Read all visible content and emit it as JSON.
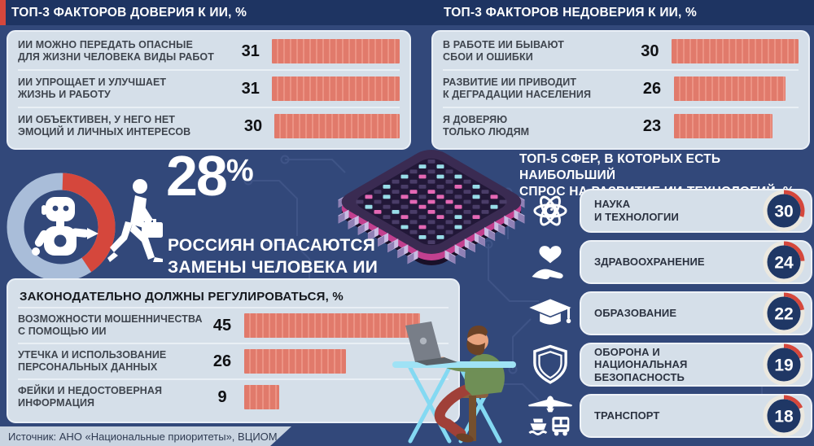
{
  "page": {
    "source_label": "Источник: АНО «Национальные приоритеты», ВЦИОМ"
  },
  "fear": {
    "value": "28",
    "suffix": "%",
    "caption": "РОССИЯН ОПАСАЮТСЯ\nЗАМЕНЫ ЧЕЛОВЕКА ИИ"
  },
  "colors": {
    "background": "#32487a",
    "title_band": "#1e3462",
    "panel": "#d5dfe9",
    "bar": "#e17a6b",
    "bar_stripe": "#ec9384",
    "accent_red": "#d5473c",
    "donut_ring": "#a9bdd9",
    "gauge_core": "#1f3765",
    "gauge_ring": "#ebe8df"
  },
  "chart_data": [
    {
      "type": "bar",
      "orientation": "horizontal",
      "title": "ТОП-3 ФАКТОРОВ ДОВЕРИЯ К ИИ, %",
      "categories": [
        "ИИ МОЖНО ПЕРЕДАТЬ ОПАСНЫЕ\nДЛЯ ЖИЗНИ ЧЕЛОВЕКА ВИДЫ РАБОТ",
        "ИИ УПРОЩАЕТ И УЛУЧШАЕТ\nЖИЗНЬ И РАБОТУ",
        "ИИ ОБЪЕКТИВЕН, У НЕГО НЕТ\nЭМОЦИЙ И ЛИЧНЫХ ИНТЕРЕСОВ"
      ],
      "values": [
        31,
        31,
        30
      ],
      "xlim": [
        0,
        31
      ],
      "bar_color": "#e17a6b"
    },
    {
      "type": "bar",
      "orientation": "horizontal",
      "title": "ТОП-3 ФАКТОРОВ НЕДОВЕРИЯ К ИИ, %",
      "categories": [
        "В РАБОТЕ ИИ БЫВАЮТ\nСБОИ И ОШИБКИ",
        "РАЗВИТИЕ ИИ ПРИВОДИТ\nК ДЕГРАДАЦИИ НАСЕЛЕНИЯ",
        "Я ДОВЕРЯЮ\nТОЛЬКО ЛЮДЯМ"
      ],
      "values": [
        30,
        26,
        23
      ],
      "xlim": [
        0,
        30
      ],
      "bar_color": "#e17a6b"
    },
    {
      "type": "bar",
      "orientation": "horizontal",
      "title": "ЗАКОНОДАТЕЛЬНО ДОЛЖНЫ РЕГУЛИРОВАТЬСЯ, %",
      "categories": [
        "ВОЗМОЖНОСТИ МОШЕННИЧЕСТВА\nС ПОМОЩЬЮ ИИ",
        "УТЕЧКА И ИСПОЛЬЗОВАНИЕ\nПЕРСОНАЛЬНЫХ ДАННЫХ",
        "ФЕЙКИ И НЕДОСТОВЕРНАЯ\nИНФОРМАЦИЯ"
      ],
      "values": [
        45,
        26,
        9
      ],
      "xlim": [
        0,
        45
      ],
      "bar_color": "#e17a6b"
    },
    {
      "type": "bar",
      "orientation": "horizontal",
      "title": "ТОП-5 СФЕР, В КОТОРЫХ ЕСТЬ НАИБОЛЬШИЙ СПРОС НА РАЗВИТИЕ ИИ-ТЕХНОЛОГИЙ, %",
      "title_lines": [
        "ТОП-5 СФЕР, В КОТОРЫХ ЕСТЬ НАИБОЛЬШИЙ",
        "СПРОС НА РАЗВИТИЕ ИИ-ТЕХНОЛОГИЙ, %"
      ],
      "categories": [
        "НАУКА\nИ ТЕХНОЛОГИИ",
        "ЗДРАВООХРАНЕНИЕ",
        "ОБРАЗОВАНИЕ",
        "ОБОРОНА И НАЦИОНАЛЬНАЯ\nБЕЗОПАСНОСТЬ",
        "ТРАНСПОРТ"
      ],
      "values": [
        30,
        24,
        22,
        19,
        18
      ],
      "icons": [
        "atom-icon",
        "heart-hand-icon",
        "graduation-cap-icon",
        "shield-icon",
        "transport-icon"
      ],
      "value_max": 100
    },
    {
      "type": "pie",
      "title": "28% РОССИЯН ОПАСАЮТСЯ ЗАМЕНЫ ЧЕЛОВЕКА ИИ",
      "values": [
        28,
        72
      ]
    }
  ]
}
